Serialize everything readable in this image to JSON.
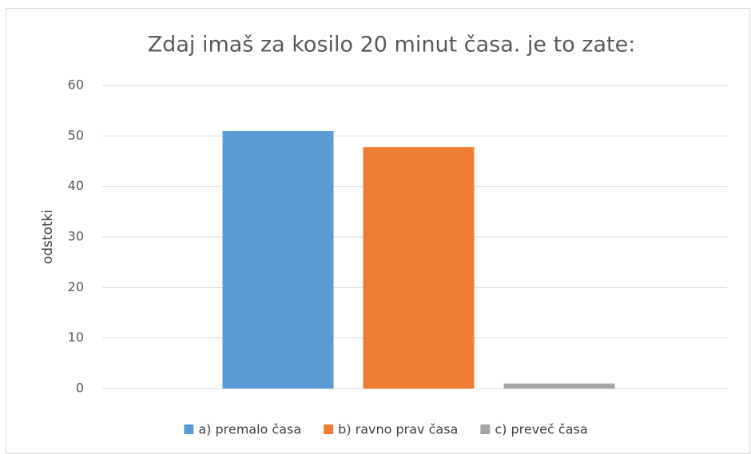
{
  "chart_data": {
    "type": "bar",
    "title": "Zdaj imaš za kosilo 20 minut časa. je to zate:",
    "y_label": "odstotki",
    "categories": [
      null
    ],
    "series": [
      {
        "name": "a) premalo časa",
        "color": "#5b9bd5",
        "values": [
          51
        ]
      },
      {
        "name": "b) ravno prav časa",
        "color": "#ed7d31",
        "values": [
          47.8
        ]
      },
      {
        "name": "c) preveč časa",
        "color": "#a5a5a5",
        "values": [
          1
        ]
      }
    ],
    "ylim": [
      0,
      60
    ],
    "yticks": [
      0,
      10,
      20,
      30,
      40,
      50,
      60
    ],
    "grid": true,
    "legend": "bottom"
  }
}
